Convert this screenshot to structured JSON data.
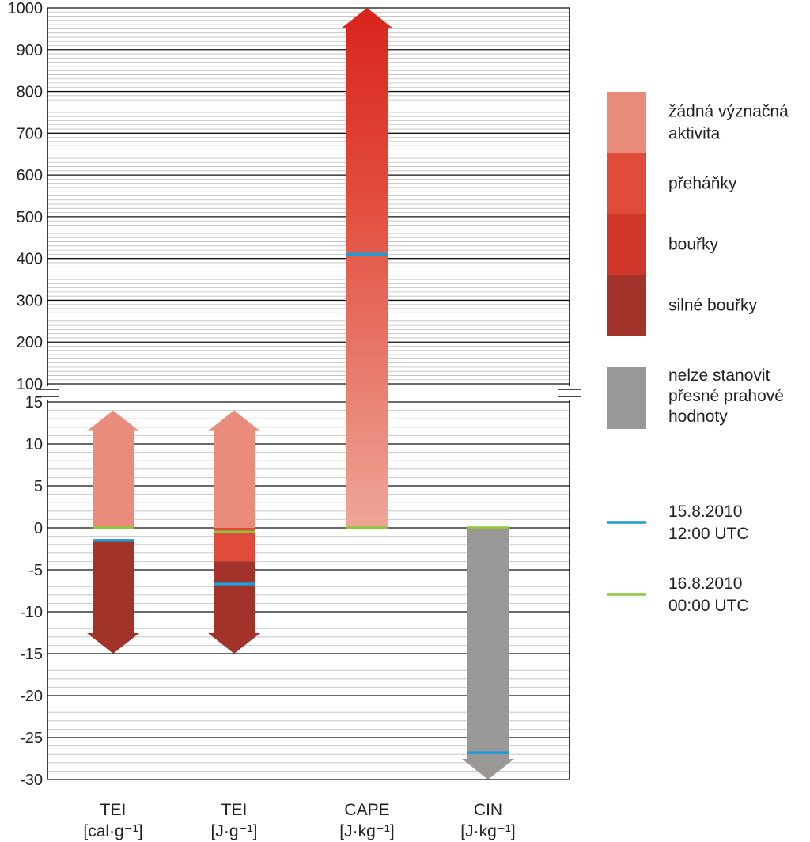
{
  "chart_data": {
    "type": "bar",
    "y_axis": {
      "upper_segment": {
        "range": [
          100,
          1000
        ],
        "major_step": 100
      },
      "lower_segment": {
        "range": [
          -30,
          15
        ],
        "major_step": 5
      },
      "axis_break_between": [
        15,
        100
      ]
    },
    "grid": true,
    "categories": [
      {
        "name": "TEI",
        "unit": "[cal·g⁻¹]"
      },
      {
        "name": "TEI",
        "unit": "[J·g⁻¹]"
      },
      {
        "name": "CAPE",
        "unit": "[J·kg⁻¹]"
      },
      {
        "name": "CIN",
        "unit": "[J·kg⁻¹]"
      }
    ],
    "activity_bands": [
      {
        "category": 0,
        "class": "none",
        "from": 0,
        "to": 14,
        "arrow": "up"
      },
      {
        "category": 0,
        "class": "severe",
        "from": -15,
        "to": -1.5,
        "arrow": "down"
      },
      {
        "category": 1,
        "class": "none",
        "from": 0,
        "to": 14,
        "arrow": "up"
      },
      {
        "category": 1,
        "class": "showers",
        "from": -4,
        "to": 0
      },
      {
        "category": 1,
        "class": "severe",
        "from": -15,
        "to": -4,
        "arrow": "down"
      },
      {
        "category": 2,
        "class": "gradient_none_to_storms",
        "from": 0,
        "to": 1000,
        "arrow": "up"
      },
      {
        "category": 3,
        "class": "undetermined",
        "from": -30,
        "to": 0,
        "arrow": "down"
      }
    ],
    "observations": [
      {
        "series": 0,
        "category": 0,
        "value": -1.5
      },
      {
        "series": 1,
        "category": 0,
        "value": 0
      },
      {
        "series": 0,
        "category": 1,
        "value": -6.7
      },
      {
        "series": 1,
        "category": 1,
        "value": -0.5
      },
      {
        "series": 0,
        "category": 2,
        "value": 410
      },
      {
        "series": 1,
        "category": 2,
        "value": 0
      },
      {
        "series": 0,
        "category": 3,
        "value": -26.8
      },
      {
        "series": 1,
        "category": 3,
        "value": 0
      }
    ],
    "legend": {
      "placement": "right",
      "activity_items": [
        {
          "key": "none",
          "lines": [
            "žádná význačná",
            "aktivita"
          ],
          "color": "#E98C7B"
        },
        {
          "key": "showers",
          "lines": [
            "přeháňky"
          ],
          "color": "#E14B3A"
        },
        {
          "key": "storms",
          "lines": [
            "bouřky"
          ],
          "color": "#D0372A"
        },
        {
          "key": "severe",
          "lines": [
            "silné bouřky"
          ],
          "color": "#A1332B"
        }
      ],
      "undetermined_item": {
        "key": "undetermined",
        "lines": [
          "nelze stanovit",
          "přesné prahové",
          "hodnoty"
        ],
        "color": "#9A9797"
      },
      "series_items": [
        {
          "lines": [
            "15.8.2010",
            "12:00 UTC"
          ],
          "color": "#1E9AD6"
        },
        {
          "lines": [
            "16.8.2010",
            "00:00 UTC"
          ],
          "color": "#8CC63F"
        }
      ]
    },
    "colors": {
      "none": "#E98C7B",
      "showers": "#E14B3A",
      "storms": "#D0372A",
      "severe": "#A1332B",
      "undetermined": "#9A9797",
      "cape_top": "#D8241C",
      "cape_bottom": "#EEA699"
    }
  }
}
